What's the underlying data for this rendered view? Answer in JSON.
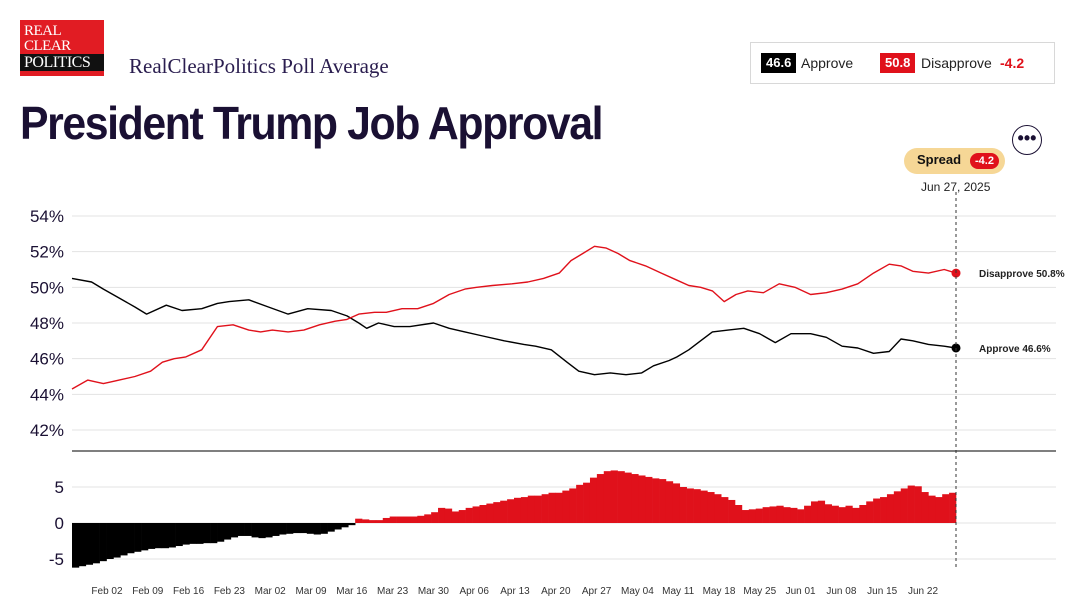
{
  "logo": {
    "line1": "REAL",
    "line2": "CLEAR",
    "line3": "POLITICS"
  },
  "header": {
    "subtitle": "RealClearPolitics Poll Average",
    "title": "President Trump Job Approval"
  },
  "legend": {
    "approve_value": "46.6",
    "approve_label": "Approve",
    "disapprove_value": "50.8",
    "disapprove_label": "Disapprove",
    "spread_value": "-4.2"
  },
  "spread_pill": {
    "label": "Spread",
    "value": "-4.2"
  },
  "hover_date": "Jun 27, 2025",
  "more_label": "•••",
  "colors": {
    "approve": "#000000",
    "disapprove": "#e0111b",
    "pill": "#f6d796"
  },
  "chart_data": [
    {
      "type": "line",
      "x_tick_labels": [
        "Feb 02",
        "Feb 09",
        "Feb 16",
        "Feb 23",
        "Mar 02",
        "Mar 09",
        "Mar 16",
        "Mar 23",
        "Mar 30",
        "Apr 06",
        "Apr 13",
        "Apr 20",
        "Apr 27",
        "May 04",
        "May 11",
        "May 18",
        "May 25",
        "Jun 01",
        "Jun 08",
        "Jun 15",
        "Jun 22"
      ],
      "y_tick_labels": [
        "54%",
        "52%",
        "50%",
        "48%",
        "46%",
        "44%",
        "42%"
      ],
      "ylim": [
        41,
        54.5
      ],
      "x_day_range": [
        0,
        157
      ],
      "series": [
        {
          "name": "Approve",
          "end_label": "Approve 46.6%",
          "points": [
            [
              0,
              50.5
            ],
            [
              5,
              50.3
            ],
            [
              8,
              49.9
            ],
            [
              12,
              49.4
            ],
            [
              16,
              48.9
            ],
            [
              19,
              48.5
            ],
            [
              24,
              49.0
            ],
            [
              28,
              48.7
            ],
            [
              33,
              48.8
            ],
            [
              37,
              49.1
            ],
            [
              40,
              49.2
            ],
            [
              45,
              49.3
            ],
            [
              50,
              48.9
            ],
            [
              55,
              48.5
            ],
            [
              60,
              48.8
            ],
            [
              66,
              48.7
            ],
            [
              70,
              48.4
            ],
            [
              73,
              48.0
            ],
            [
              75,
              47.7
            ],
            [
              78,
              48.0
            ],
            [
              82,
              47.8
            ],
            [
              86,
              47.8
            ],
            [
              92,
              48.0
            ],
            [
              96,
              47.7
            ],
            [
              100,
              47.5
            ],
            [
              104,
              47.3
            ],
            [
              110,
              47.0
            ],
            [
              115,
              46.8
            ],
            [
              118,
              46.7
            ],
            [
              122,
              46.5
            ],
            [
              126,
              45.8
            ],
            [
              129,
              45.3
            ],
            [
              133,
              45.1
            ],
            [
              137,
              45.2
            ],
            [
              141,
              45.1
            ],
            [
              145,
              45.2
            ],
            [
              148,
              45.6
            ],
            [
              152,
              45.9
            ],
            [
              154,
              46.1
            ],
            [
              157,
              46.5
            ],
            [
              160,
              47.0
            ],
            [
              163,
              47.5
            ],
            [
              167,
              47.6
            ],
            [
              171,
              47.7
            ],
            [
              175,
              47.4
            ],
            [
              179,
              46.9
            ],
            [
              183,
              47.4
            ],
            [
              188,
              47.4
            ],
            [
              192,
              47.2
            ],
            [
              196,
              46.7
            ],
            [
              200,
              46.6
            ],
            [
              204,
              46.3
            ],
            [
              208,
              46.4
            ],
            [
              211,
              47.1
            ],
            [
              214,
              47.0
            ],
            [
              218,
              46.8
            ],
            [
              222,
              46.7
            ],
            [
              225,
              46.6
            ]
          ]
        },
        {
          "name": "Disapprove",
          "end_label": "Disapprove 50.8%",
          "points": [
            [
              0,
              44.3
            ],
            [
              4,
              44.8
            ],
            [
              8,
              44.6
            ],
            [
              12,
              44.8
            ],
            [
              16,
              45.0
            ],
            [
              20,
              45.3
            ],
            [
              23,
              45.8
            ],
            [
              26,
              46.0
            ],
            [
              29,
              46.1
            ],
            [
              33,
              46.5
            ],
            [
              37,
              47.8
            ],
            [
              41,
              47.9
            ],
            [
              45,
              47.6
            ],
            [
              48,
              47.5
            ],
            [
              51,
              47.6
            ],
            [
              55,
              47.5
            ],
            [
              59,
              47.6
            ],
            [
              63,
              47.9
            ],
            [
              67,
              48.1
            ],
            [
              70,
              48.2
            ],
            [
              73,
              48.5
            ],
            [
              77,
              48.6
            ],
            [
              80,
              48.6
            ],
            [
              84,
              48.8
            ],
            [
              88,
              48.8
            ],
            [
              92,
              49.1
            ],
            [
              96,
              49.6
            ],
            [
              100,
              49.9
            ],
            [
              103,
              50.0
            ],
            [
              107,
              50.1
            ],
            [
              112,
              50.2
            ],
            [
              116,
              50.3
            ],
            [
              120,
              50.5
            ],
            [
              124,
              50.8
            ],
            [
              127,
              51.5
            ],
            [
              130,
              51.9
            ],
            [
              133,
              52.3
            ],
            [
              136,
              52.2
            ],
            [
              139,
              51.9
            ],
            [
              142,
              51.5
            ],
            [
              146,
              51.2
            ],
            [
              150,
              50.8
            ],
            [
              154,
              50.4
            ],
            [
              157,
              50.1
            ],
            [
              160,
              50.0
            ],
            [
              163,
              49.8
            ],
            [
              166,
              49.2
            ],
            [
              169,
              49.6
            ],
            [
              172,
              49.8
            ],
            [
              176,
              49.7
            ],
            [
              180,
              50.2
            ],
            [
              184,
              50.0
            ],
            [
              188,
              49.6
            ],
            [
              192,
              49.7
            ],
            [
              196,
              49.9
            ],
            [
              200,
              50.2
            ],
            [
              204,
              50.8
            ],
            [
              208,
              51.3
            ],
            [
              211,
              51.2
            ],
            [
              214,
              50.9
            ],
            [
              218,
              50.8
            ],
            [
              222,
              51.0
            ],
            [
              225,
              50.8
            ]
          ]
        }
      ]
    },
    {
      "type": "bar",
      "y_tick_labels": [
        "5",
        "0",
        "-5"
      ],
      "ylim": [
        -6.2,
        9.5
      ],
      "name": "Spread",
      "values": [
        -6.2,
        -6.0,
        -5.8,
        -5.6,
        -5.3,
        -5.0,
        -4.8,
        -4.5,
        -4.2,
        -4.0,
        -3.8,
        -3.6,
        -3.5,
        -3.5,
        -3.4,
        -3.2,
        -3.0,
        -2.9,
        -2.9,
        -2.8,
        -2.8,
        -2.6,
        -2.3,
        -2.0,
        -1.8,
        -1.8,
        -2.0,
        -2.1,
        -2.0,
        -1.8,
        -1.6,
        -1.5,
        -1.4,
        -1.4,
        -1.5,
        -1.6,
        -1.5,
        -1.2,
        -0.9,
        -0.6,
        -0.3,
        0.6,
        0.5,
        0.4,
        0.4,
        0.7,
        0.9,
        0.9,
        0.9,
        0.9,
        1.0,
        1.2,
        1.5,
        2.1,
        2.0,
        1.6,
        1.8,
        2.1,
        2.3,
        2.5,
        2.7,
        2.9,
        3.1,
        3.3,
        3.5,
        3.6,
        3.8,
        3.8,
        4.0,
        4.2,
        4.2,
        4.5,
        4.8,
        5.3,
        5.6,
        6.3,
        6.8,
        7.2,
        7.3,
        7.2,
        7.0,
        6.8,
        6.6,
        6.4,
        6.2,
        6.1,
        5.8,
        5.5,
        5.0,
        4.8,
        4.7,
        4.5,
        4.3,
        4.0,
        3.6,
        3.2,
        2.5,
        1.8,
        1.9,
        2.0,
        2.2,
        2.3,
        2.4,
        2.2,
        2.1,
        1.9,
        2.4,
        3.0,
        3.1,
        2.6,
        2.4,
        2.2,
        2.4,
        2.1,
        2.5,
        3.0,
        3.4,
        3.6,
        4.0,
        4.4,
        4.8,
        5.2,
        5.1,
        4.3,
        3.8,
        3.6,
        4.0,
        4.2
      ]
    }
  ]
}
